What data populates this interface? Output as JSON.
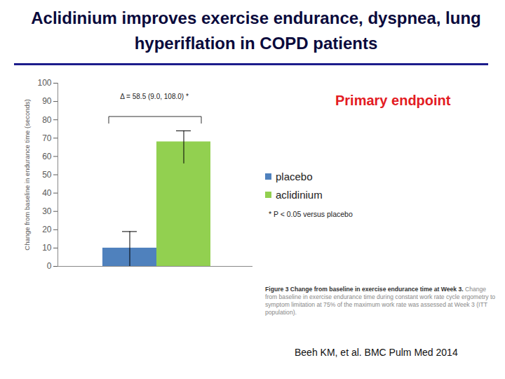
{
  "chart_data": {
    "type": "bar",
    "title": "Aclidinium improves exercise endurance, dyspnea, lung hyperiflation in COPD patients",
    "ylabel": "Change from baseline in endurance time (seconds)",
    "series": [
      {
        "name": "placebo",
        "color": "#4f81bd",
        "values": [
          10
        ],
        "error_low": [
          0
        ],
        "error_high": [
          19
        ]
      },
      {
        "name": "aclidinium",
        "color": "#92d050",
        "values": [
          68
        ],
        "error_low": [
          56
        ],
        "error_high": [
          74
        ]
      }
    ],
    "ylim": [
      0,
      100
    ],
    "yticks": [
      0,
      10,
      20,
      30,
      40,
      50,
      60,
      70,
      80,
      90,
      100
    ],
    "tick_labels": "y",
    "legend": "right",
    "comparison": "Δ = 58.5 (9.0, 108.0) *",
    "endpoint_label": "Primary endpoint",
    "footnote": "* P < 0.05 versus placebo",
    "caption": {
      "title": "Figure 3 Change from baseline in exercise endurance time at Week 3.",
      "text": "Change from baseline in exercise endurance time during constant work rate cycle ergometry to symptom limitation at 75% of the maximum work rate was assessed at Week 3 (ITT population)."
    },
    "source": "Beeh KM, et al. BMC Pulm Med 2014"
  }
}
